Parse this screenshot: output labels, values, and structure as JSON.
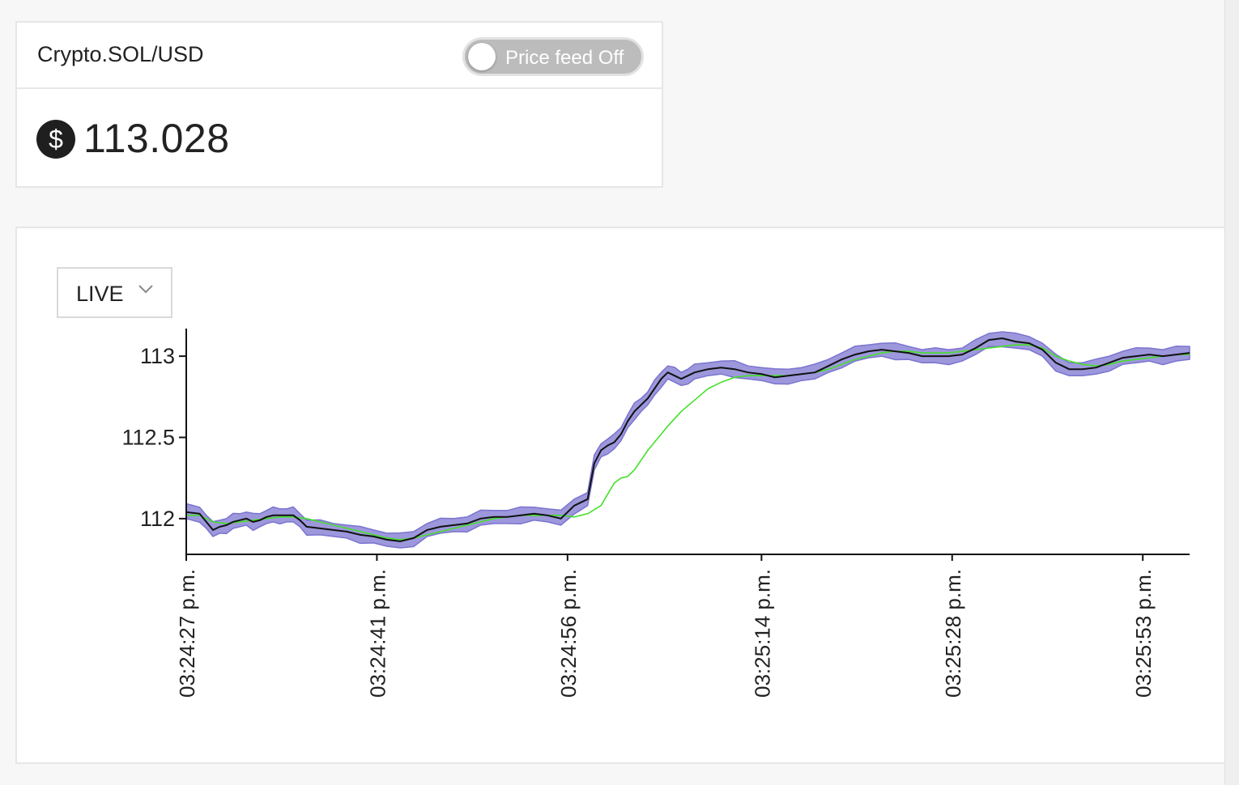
{
  "price_card": {
    "symbol": "Crypto.SOL/USD",
    "toggle_label": "Price feed Off",
    "toggle_on": false,
    "currency_icon": "dollar-icon",
    "currency_symbol": "$",
    "price": "113.028"
  },
  "chart_panel": {
    "range": "LIVE",
    "range_icon": "chevron-down-icon"
  },
  "chart_data": {
    "type": "line",
    "ylim": [
      111.78,
      113.17
    ],
    "yticks": [
      {
        "value": 113,
        "label": "113"
      },
      {
        "value": 112.5,
        "label": "112.5"
      },
      {
        "value": 112,
        "label": "112"
      }
    ],
    "xlim": [
      0,
      150
    ],
    "xticks": [
      {
        "value": 0,
        "label": "03:24:27 p.m."
      },
      {
        "value": 28.5,
        "label": "03:24:41 p.m."
      },
      {
        "value": 57,
        "label": "03:24:56 p.m."
      },
      {
        "value": 86,
        "label": "03:25:14 p.m."
      },
      {
        "value": 114.5,
        "label": "03:25:28 p.m."
      },
      {
        "value": 143,
        "label": "03:25:53 p.m."
      }
    ],
    "series": [
      {
        "role": "price",
        "color": "#111111",
        "x": [
          0,
          2,
          3,
          4,
          5,
          6,
          7,
          8,
          9,
          10,
          11,
          12,
          13,
          14,
          15,
          16,
          17,
          18,
          20,
          22,
          24,
          26,
          28,
          30,
          32,
          34,
          36,
          38,
          40,
          42,
          44,
          46,
          48,
          50,
          52,
          54,
          56,
          58,
          60,
          61,
          62,
          63,
          64,
          65,
          66,
          67,
          68,
          69,
          70,
          71,
          72,
          73,
          74,
          75,
          76,
          78,
          80,
          82,
          84,
          86,
          88,
          90,
          92,
          94,
          96,
          98,
          100,
          102,
          104,
          106,
          108,
          110,
          112,
          114,
          116,
          118,
          120,
          122,
          124,
          126,
          128,
          130,
          132,
          134,
          136,
          138,
          140,
          142,
          144,
          146,
          148,
          150
        ],
        "y": [
          112.04,
          112.03,
          111.98,
          111.93,
          111.95,
          111.96,
          111.98,
          111.99,
          112.0,
          111.98,
          111.99,
          112.01,
          112.02,
          112.02,
          112.02,
          112.02,
          111.99,
          111.95,
          111.94,
          111.93,
          111.92,
          111.9,
          111.89,
          111.87,
          111.86,
          111.88,
          111.93,
          111.95,
          111.96,
          111.97,
          112.0,
          112.01,
          112.01,
          112.02,
          112.03,
          112.02,
          112.0,
          112.08,
          112.12,
          112.34,
          112.42,
          112.45,
          112.47,
          112.52,
          112.6,
          112.66,
          112.7,
          112.74,
          112.8,
          112.86,
          112.9,
          112.88,
          112.86,
          112.88,
          112.9,
          112.92,
          112.93,
          112.92,
          112.9,
          112.89,
          112.87,
          112.88,
          112.89,
          112.9,
          112.94,
          112.98,
          113.01,
          113.03,
          113.04,
          113.03,
          113.02,
          113.0,
          113.0,
          113.0,
          113.01,
          113.05,
          113.1,
          113.11,
          113.09,
          113.08,
          113.04,
          112.96,
          112.92,
          112.92,
          112.93,
          112.96,
          112.99,
          113.0,
          113.01,
          113.0,
          113.01,
          113.02
        ]
      },
      {
        "role": "moving-average",
        "color": "#44e02a",
        "x": [
          0,
          2,
          4,
          6,
          8,
          10,
          12,
          14,
          16,
          18,
          20,
          22,
          24,
          26,
          28,
          30,
          32,
          34,
          36,
          38,
          40,
          42,
          44,
          46,
          48,
          50,
          52,
          54,
          56,
          58,
          60,
          62,
          63,
          64,
          65,
          66,
          67,
          68,
          69,
          70,
          72,
          74,
          76,
          78,
          80,
          82,
          84,
          86,
          88,
          90,
          92,
          94,
          96,
          98,
          100,
          102,
          104,
          106,
          108,
          110,
          112,
          114,
          116,
          118,
          120,
          122,
          124,
          126,
          128,
          130,
          132,
          134,
          136,
          138,
          140,
          142,
          144,
          146,
          148,
          150
        ],
        "y": [
          112.02,
          112.02,
          111.98,
          111.97,
          111.98,
          111.99,
          112.0,
          112.01,
          112.01,
          112.0,
          111.98,
          111.96,
          111.94,
          111.92,
          111.9,
          111.88,
          111.87,
          111.88,
          111.9,
          111.92,
          111.94,
          111.96,
          111.98,
          112.0,
          112.01,
          112.02,
          112.02,
          112.02,
          112.02,
          112.01,
          112.03,
          112.08,
          112.15,
          112.22,
          112.25,
          112.26,
          112.3,
          112.36,
          112.42,
          112.47,
          112.57,
          112.66,
          112.73,
          112.8,
          112.84,
          112.87,
          112.88,
          112.88,
          112.88,
          112.88,
          112.89,
          112.9,
          112.92,
          112.95,
          112.98,
          113.0,
          113.02,
          113.03,
          113.03,
          113.02,
          113.02,
          113.02,
          113.03,
          113.04,
          113.05,
          113.06,
          113.07,
          113.07,
          113.05,
          113.0,
          112.97,
          112.95,
          112.94,
          112.95,
          112.97,
          112.98,
          112.99,
          113.0,
          113.01,
          113.01
        ]
      }
    ],
    "band": {
      "role": "confidence-interval",
      "color": "#9d97dc",
      "stroke": "#7b74cf",
      "half_width": 0.04
    }
  }
}
